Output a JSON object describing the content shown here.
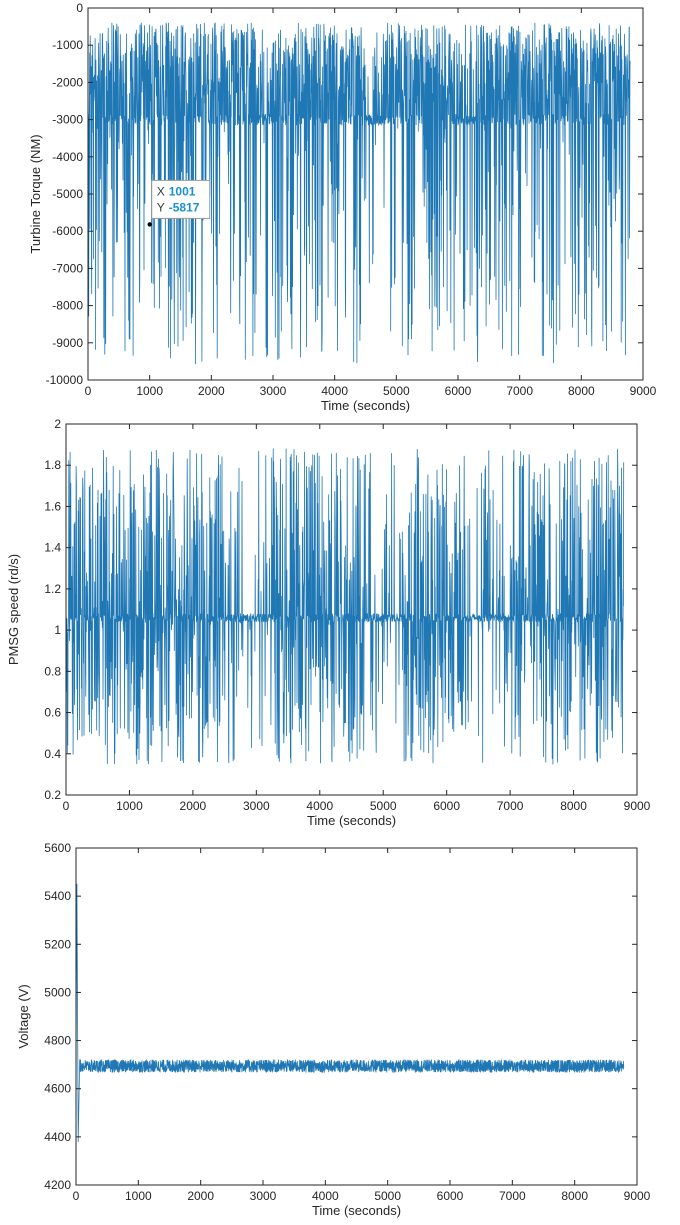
{
  "colors": {
    "series": "#1f77b4",
    "axes": "#262626"
  },
  "chart_data": [
    {
      "type": "line",
      "title": "",
      "xlabel": "Time (seconds)",
      "ylabel": "Turbine Torque (NM)",
      "xlim": [
        0,
        9000
      ],
      "ylim": [
        -10000,
        0
      ],
      "x_ticks": [
        0,
        1000,
        2000,
        3000,
        4000,
        5000,
        6000,
        7000,
        8000,
        9000
      ],
      "y_ticks": [
        0,
        -1000,
        -2000,
        -3000,
        -4000,
        -5000,
        -6000,
        -7000,
        -8000,
        -9000,
        -10000
      ],
      "x_range_data": [
        0,
        8790
      ],
      "series": [
        {
          "baseline": -3000,
          "min_approx": -9800,
          "max_approx": -400,
          "samples": 8790
        }
      ],
      "datatip": {
        "x_label": "X",
        "y_label": "Y",
        "x": 1001,
        "y": -5817
      }
    },
    {
      "type": "line",
      "title": "",
      "xlabel": "Time (seconds)",
      "ylabel": "PMSG speed (rd/s)",
      "xlim": [
        0,
        9000
      ],
      "ylim": [
        0.2,
        2
      ],
      "x_ticks": [
        0,
        1000,
        2000,
        3000,
        4000,
        5000,
        6000,
        7000,
        8000,
        9000
      ],
      "y_ticks": [
        0.2,
        0.4,
        0.6,
        0.8,
        1,
        1.2,
        1.4,
        1.6,
        1.8,
        2
      ],
      "x_range_data": [
        0,
        8790
      ],
      "series": [
        {
          "baseline": 1.06,
          "min_approx": 0.33,
          "max_approx": 1.93,
          "samples": 8790
        }
      ]
    },
    {
      "type": "line",
      "title": "",
      "xlabel": "Time (seconds)",
      "ylabel": "Voltage (V)",
      "xlim": [
        0,
        9000
      ],
      "ylim": [
        4200,
        5600
      ],
      "x_ticks": [
        0,
        1000,
        2000,
        3000,
        4000,
        5000,
        6000,
        7000,
        8000,
        9000
      ],
      "y_ticks": [
        4200,
        4400,
        4600,
        4800,
        5000,
        5200,
        5400,
        5600
      ],
      "x_range_data": [
        0,
        8790
      ],
      "series": [
        {
          "baseline": 4690,
          "band": [
            4665,
            4720
          ],
          "initial_transient": [
            4380,
            5450
          ],
          "samples": 8790
        }
      ]
    }
  ]
}
